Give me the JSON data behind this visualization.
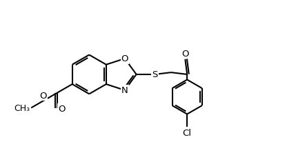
{
  "bg_color": "#ffffff",
  "line_color": "#000000",
  "line_width": 1.5,
  "figsize": [
    4.29,
    2.26
  ],
  "dpi": 100,
  "xlim": [
    0,
    8.5
  ],
  "ylim": [
    0,
    5.5
  ]
}
